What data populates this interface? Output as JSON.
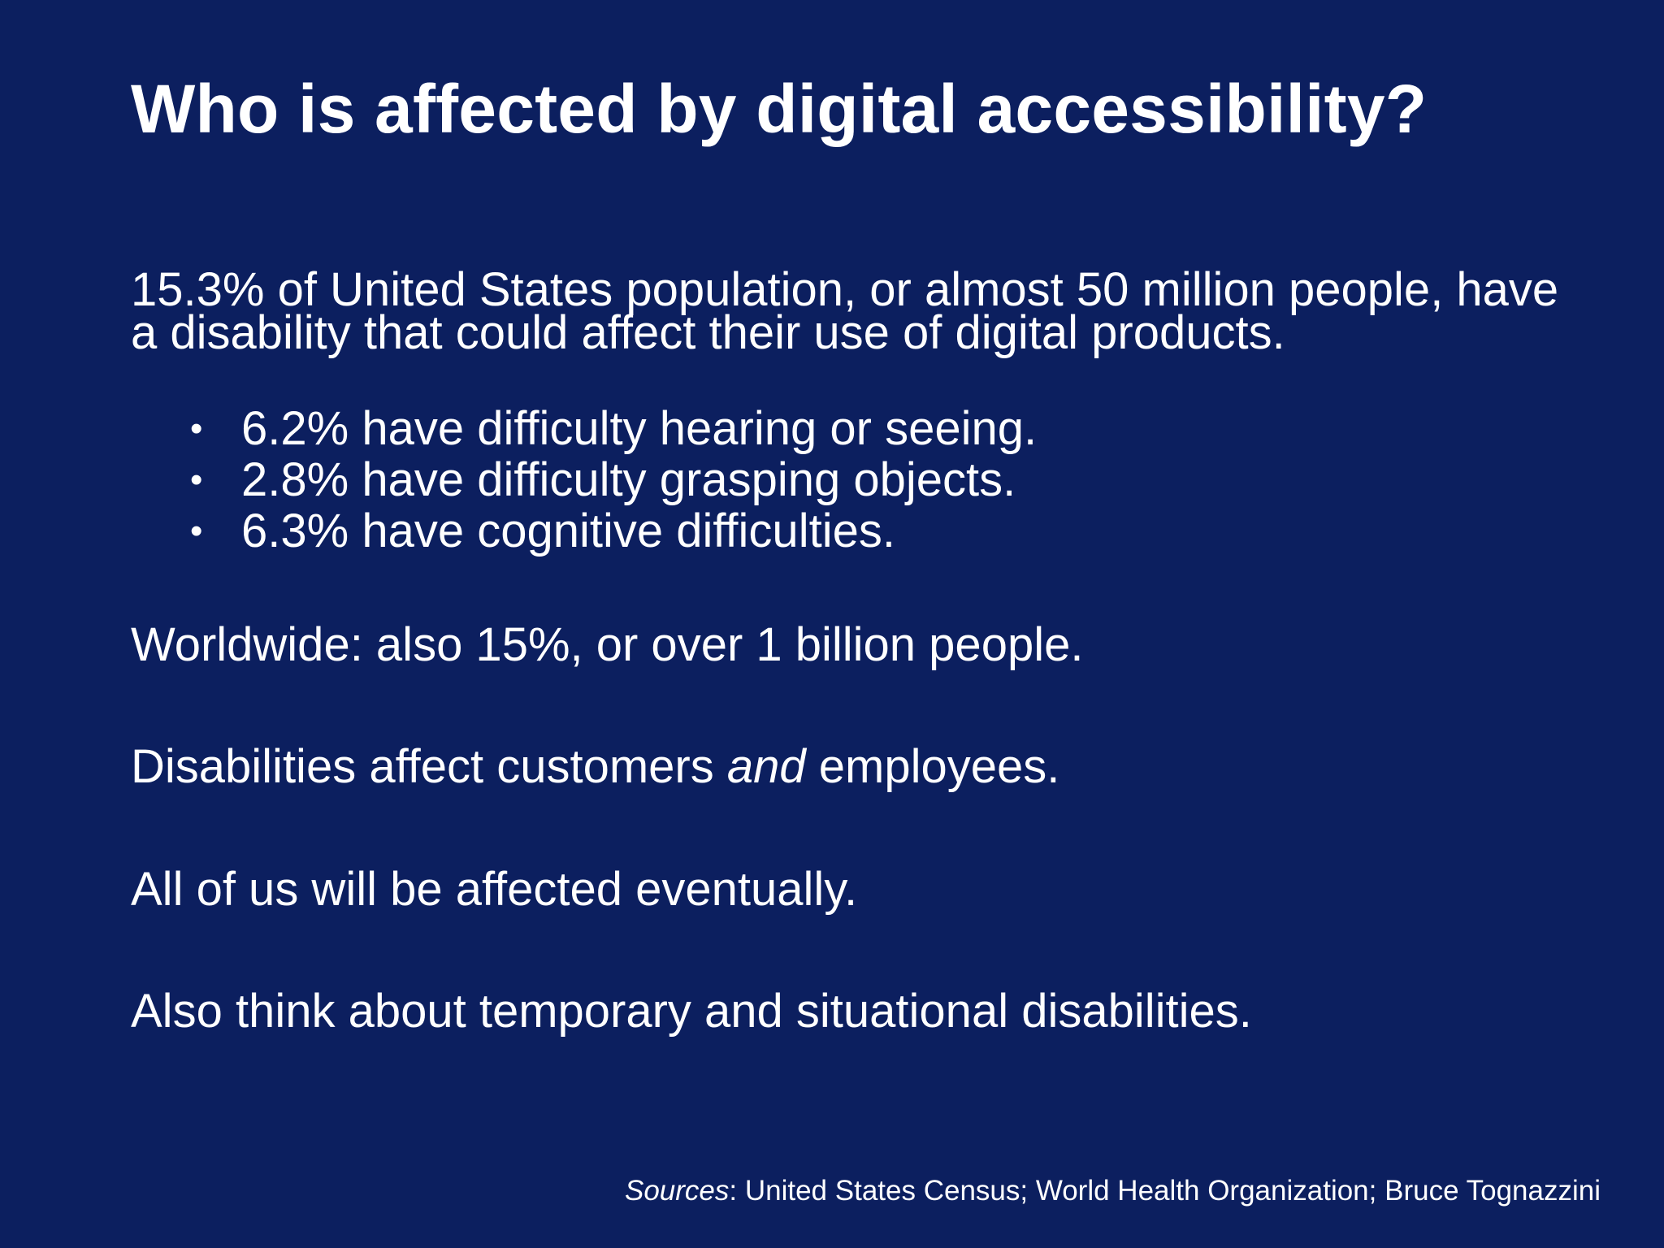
{
  "slide": {
    "title": "Who is affected by digital accessibility?",
    "intro": "15.3% of United States population, or almost 50 million people, have a disability that could affect their use of digital products.",
    "bullets": [
      "6.2% have difficulty hearing or seeing.",
      "2.8% have difficulty grasping objects.",
      "6.3% have cognitive difficulties."
    ],
    "bullet_icon": "•",
    "worldwide": "Worldwide: also 15%, or over 1 billion people.",
    "employees": {
      "before": "Disabilities affect customers ",
      "emphasis": "and",
      "after": " employees."
    },
    "eventually": "All of us will be affected eventually.",
    "temporary": "Also think about temporary and situational disabilities.",
    "sources": {
      "label": "Sources",
      "text": ": United States Census; World Health Organization; Bruce Tognazzini"
    }
  },
  "colors": {
    "background": "#0c1f5f",
    "text": "#ffffff"
  }
}
